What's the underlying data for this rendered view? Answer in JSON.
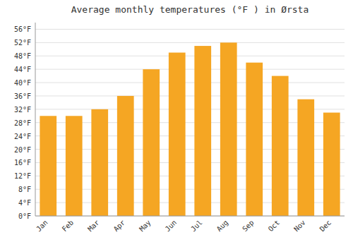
{
  "chart_data": {
    "type": "bar",
    "title": "Average monthly temperatures (°F ) in Ørsta",
    "categories": [
      "Jan",
      "Feb",
      "Mar",
      "Apr",
      "May",
      "Jun",
      "Jul",
      "Aug",
      "Sep",
      "Oct",
      "Nov",
      "Dec"
    ],
    "values": [
      30,
      30,
      32,
      36,
      44,
      49,
      51,
      52,
      46,
      42,
      35,
      31
    ],
    "color": "#F5A623",
    "ylim": [
      0,
      58
    ],
    "yticks": [
      {
        "value": 0,
        "label": "0°F"
      },
      {
        "value": 4,
        "label": "4°F"
      },
      {
        "value": 8,
        "label": "8°F"
      },
      {
        "value": 12,
        "label": "12°F"
      },
      {
        "value": 16,
        "label": "16°F"
      },
      {
        "value": 20,
        "label": "20°F"
      },
      {
        "value": 24,
        "label": "24°F"
      },
      {
        "value": 28,
        "label": "28°F"
      },
      {
        "value": 32,
        "label": "32°F"
      },
      {
        "value": 36,
        "label": "36°F"
      },
      {
        "value": 40,
        "label": "40°F"
      },
      {
        "value": 44,
        "label": "44°F"
      },
      {
        "value": 48,
        "label": "48°F"
      },
      {
        "value": 52,
        "label": "52°F"
      },
      {
        "value": 56,
        "label": "56°F"
      }
    ],
    "grid": true
  }
}
